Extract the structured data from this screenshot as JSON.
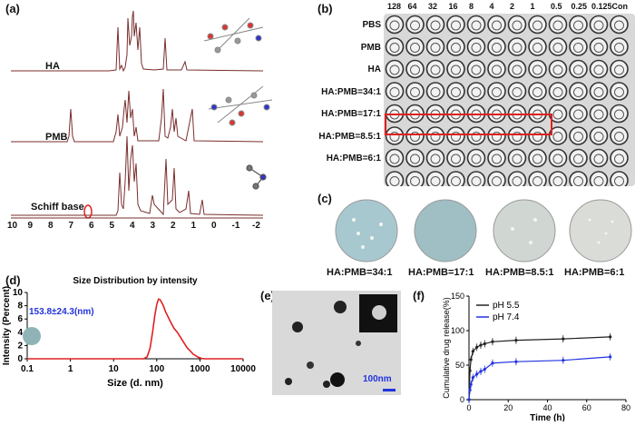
{
  "panels": {
    "a": "(a)",
    "b": "(b)",
    "c": "(c)",
    "d": "(d)",
    "e": "(e)",
    "f": "(f)"
  },
  "nmr": {
    "spectra": [
      "HA",
      "PMB",
      "Schiff base"
    ],
    "axis_ticks": [
      "10",
      "9",
      "8",
      "7",
      "6",
      "5",
      "4",
      "3",
      "2",
      "1",
      "0",
      "-1",
      "-2"
    ],
    "colors": {
      "line": "#7a2d2d",
      "highlight": "#e02020"
    }
  },
  "plate": {
    "columns": [
      "128",
      "64",
      "32",
      "16",
      "8",
      "4",
      "2",
      "1",
      "0.5",
      "0.25",
      "0.125",
      "Con"
    ],
    "rows": [
      "PBS",
      "PMB",
      "HA",
      "HA:PMB=34:1",
      "HA:PMB=17:1",
      "HA:PMB=8.5:1",
      "HA:PMB=6:1"
    ]
  },
  "dishes": [
    "HA:PMB=34:1",
    "HA:PMB=17:1",
    "HA:PMB=8.5:1",
    "HA:PMB=6:1"
  ],
  "tem": {
    "scale_bar": "100nm"
  },
  "chart_data": [
    {
      "type": "line",
      "title": "Size Distribution by intensity",
      "xlabel": "Size (d. nm)",
      "ylabel": "Intensity (Percent)",
      "xscale": "log",
      "xlim": [
        0.1,
        10000
      ],
      "ylim": [
        0,
        10
      ],
      "xticks": [
        "0.1",
        "1",
        "10",
        "100",
        "1000",
        "10000"
      ],
      "yticks": [
        "0",
        "2",
        "4",
        "6",
        "8",
        "10"
      ],
      "annotation": "153.8±24.3(nm)",
      "series": [
        {
          "name": "size distribution",
          "color": "#e02020",
          "x": [
            0.1,
            50,
            60,
            70,
            80,
            90,
            100,
            110,
            120,
            140,
            160,
            200,
            250,
            300,
            400,
            500,
            700,
            900,
            1100,
            1300,
            10000
          ],
          "y": [
            0,
            0,
            0.3,
            1.6,
            4.0,
            6.5,
            8.2,
            9.0,
            8.9,
            8.1,
            7.1,
            5.8,
            4.6,
            4.0,
            2.7,
            1.7,
            0.7,
            0.25,
            0.05,
            0,
            0
          ]
        }
      ]
    },
    {
      "type": "line",
      "xlabel": "Time (h)",
      "ylabel": "Cumulative drug release(%)",
      "xlim": [
        0,
        80
      ],
      "ylim": [
        0,
        150
      ],
      "xticks": [
        "0",
        "20",
        "40",
        "60",
        "80"
      ],
      "yticks": [
        "0",
        "50",
        "100",
        "150"
      ],
      "legend": "top-left",
      "series": [
        {
          "name": "pH 5.5",
          "color": "#222222",
          "x": [
            0,
            0.5,
            1,
            2,
            4,
            6,
            8,
            12,
            24,
            48,
            72
          ],
          "y": [
            0,
            42,
            58,
            70,
            76,
            79,
            81,
            84,
            86,
            88,
            91
          ]
        },
        {
          "name": "pH 7.4",
          "color": "#2233dd",
          "x": [
            0,
            0.5,
            1,
            2,
            4,
            6,
            8,
            12,
            24,
            48,
            72
          ],
          "y": [
            0,
            14,
            22,
            32,
            37,
            41,
            44,
            53,
            55,
            57,
            62
          ]
        }
      ]
    }
  ]
}
